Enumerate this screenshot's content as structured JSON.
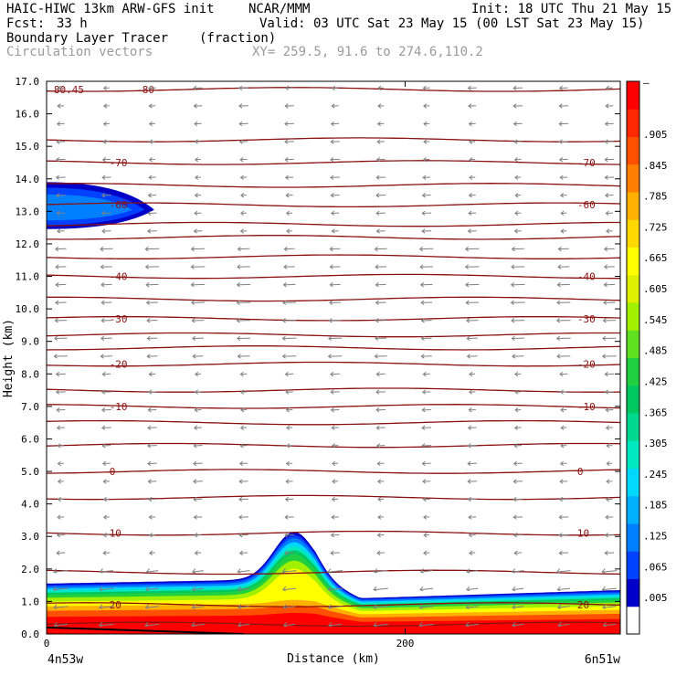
{
  "header": {
    "model": "HAIC-HIWC 13km ARW-GFS init",
    "org": "NCAR/MMM",
    "init": "Init: 18 UTC Thu 21 May 15",
    "fcst_label": "Fcst:",
    "fcst_value": "33 h",
    "valid": "Valid: 03 UTC Sat 23 May 15 (00 LST Sat 23 May 15)",
    "field": "Boundary Layer Tracer",
    "field_units": "(fraction)",
    "vectors": "Circulation vectors",
    "xy": "XY= 259.5, 91.6 to 274.6,110.2"
  },
  "chart_data": {
    "type": "area",
    "title": "Boundary Layer Tracer",
    "xlabel": "Distance (km)",
    "ylabel": "Height (km)",
    "xlim": [
      0,
      320
    ],
    "ylim": [
      0,
      17
    ],
    "x_ticks": [
      "0",
      "200"
    ],
    "x_tick_values": [
      0,
      200
    ],
    "x_end_labels": [
      "4n53w",
      "6n51w"
    ],
    "y_ticks": [
      "0.0",
      "1.0",
      "2.0",
      "3.0",
      "4.0",
      "5.0",
      "6.0",
      "7.0",
      "8.0",
      "9.0",
      "10.0",
      "11.0",
      "12.0",
      "13.0",
      "14.0",
      "15.0",
      "16.0",
      "17.0"
    ],
    "colorbar": {
      "labels": [
        ".005",
        ".065",
        ".125",
        ".185",
        ".245",
        ".305",
        ".365",
        ".425",
        ".485",
        ".545",
        ".605",
        ".665",
        ".725",
        ".785",
        ".845",
        ".905",
        "–"
      ],
      "colors": [
        "#ffffff",
        "#0000c8",
        "#0040ff",
        "#0080ff",
        "#00b0ff",
        "#00d8ff",
        "#00e8c0",
        "#00d890",
        "#00c860",
        "#20d040",
        "#60e020",
        "#a0f000",
        "#e0f000",
        "#ffff00",
        "#ffd800",
        "#ffb000",
        "#ff8000",
        "#ff5000",
        "#ff2800",
        "#ff0000"
      ]
    },
    "isotherms": [
      {
        "label": "80.45",
        "y": 16.75
      },
      {
        "label": "-80",
        "y": 16.75
      },
      {
        "label": "-70",
        "y": 14.5
      },
      {
        "label": "-60",
        "y": 13.2
      },
      {
        "label": "-40",
        "y": 11.0
      },
      {
        "label": "-30",
        "y": 9.7
      },
      {
        "label": "-20",
        "y": 8.3
      },
      {
        "label": "-10",
        "y": 7.0
      },
      {
        "label": "0",
        "y": 5.0
      },
      {
        "label": "10",
        "y": 3.1
      },
      {
        "label": "20",
        "y": 0.9
      }
    ],
    "contour_heights": [
      0.3,
      0.9,
      1.9,
      3.1,
      4.2,
      5.0,
      5.8,
      6.5,
      7.0,
      7.5,
      8.3,
      8.8,
      9.2,
      9.7,
      10.3,
      11.0,
      11.6,
      12.2,
      12.6,
      13.2,
      13.8,
      14.5,
      15.2,
      16.75
    ]
  }
}
